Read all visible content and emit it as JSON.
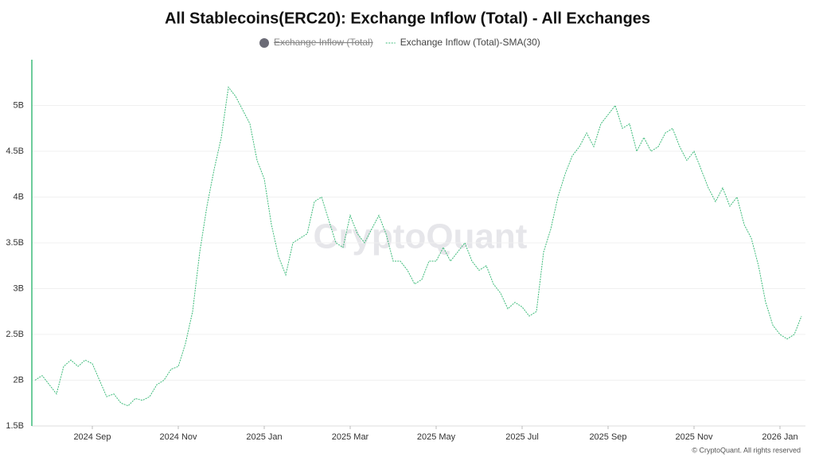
{
  "chart_data": {
    "type": "line",
    "title": "All Stablecoins(ERC20): Exchange Inflow (Total) - All Exchanges",
    "watermark": "CryptoQuant",
    "footer": "© CryptoQuant. All rights reserved",
    "categories": [
      null,
      null,
      null,
      null,
      null,
      null,
      null,
      null,
      "2024 Sep",
      null,
      null,
      null,
      null,
      null,
      null,
      null,
      null,
      null,
      null,
      null,
      "2024 Nov",
      null,
      null,
      null,
      null,
      null,
      null,
      null,
      null,
      null,
      null,
      null,
      "2025 Jan",
      null,
      null,
      null,
      null,
      null,
      null,
      null,
      null,
      null,
      null,
      null,
      "2025 Mar",
      null,
      null,
      null,
      null,
      null,
      null,
      null,
      null,
      null,
      null,
      null,
      "2025 May",
      null,
      null,
      null,
      null,
      null,
      null,
      null,
      null,
      null,
      null,
      null,
      "2025 Jul",
      null,
      null,
      null,
      null,
      null,
      null,
      null,
      null,
      null,
      null,
      null,
      "2025 Sep",
      null,
      null,
      null,
      null,
      null,
      null,
      null,
      null,
      null,
      null,
      null,
      "2025 Nov",
      null,
      null,
      null,
      null,
      null,
      null,
      null,
      null,
      null,
      null,
      null,
      "2026 Jan",
      null,
      null,
      null
    ],
    "series": [
      {
        "name": "Exchange Inflow (Total)",
        "color": "#6b6b76",
        "visible": false
      },
      {
        "name": "Exchange Inflow (Total)-SMA(30)",
        "color": "#3dbb7a",
        "visible": true,
        "values": [
          2.0,
          2.05,
          1.95,
          1.85,
          2.15,
          2.22,
          2.15,
          2.22,
          2.18,
          2.0,
          1.82,
          1.85,
          1.75,
          1.72,
          1.8,
          1.78,
          1.82,
          1.95,
          2.0,
          2.12,
          2.15,
          2.4,
          2.75,
          3.4,
          3.9,
          4.3,
          4.65,
          5.2,
          5.1,
          4.95,
          4.8,
          4.4,
          4.2,
          3.7,
          3.35,
          3.15,
          3.5,
          3.55,
          3.6,
          3.95,
          4.0,
          3.75,
          3.5,
          3.45,
          3.8,
          3.6,
          3.5,
          3.65,
          3.8,
          3.6,
          3.3,
          3.3,
          3.2,
          3.05,
          3.1,
          3.3,
          3.3,
          3.45,
          3.3,
          3.4,
          3.5,
          3.3,
          3.2,
          3.25,
          3.05,
          2.95,
          2.78,
          2.85,
          2.8,
          2.7,
          2.75,
          3.4,
          3.65,
          4.0,
          4.25,
          4.45,
          4.55,
          4.7,
          4.55,
          4.8,
          4.9,
          5.0,
          4.75,
          4.8,
          4.5,
          4.65,
          4.5,
          4.55,
          4.7,
          4.75,
          4.55,
          4.4,
          4.5,
          4.3,
          4.1,
          3.95,
          4.1,
          3.9,
          4.0,
          3.7,
          3.55,
          3.25,
          2.85,
          2.6,
          2.5,
          2.45,
          2.5,
          2.7
        ]
      }
    ],
    "ylim": [
      1.5,
      5.5
    ],
    "yticks": [
      {
        "value": 1.5,
        "label": "1.5B"
      },
      {
        "value": 2,
        "label": "2B"
      },
      {
        "value": 2.5,
        "label": "2.5B"
      },
      {
        "value": 3,
        "label": "3B"
      },
      {
        "value": 3.5,
        "label": "3.5B"
      },
      {
        "value": 4,
        "label": "4B"
      },
      {
        "value": 4.5,
        "label": "4.5B"
      },
      {
        "value": 5,
        "label": "5B"
      }
    ],
    "grid": true
  }
}
